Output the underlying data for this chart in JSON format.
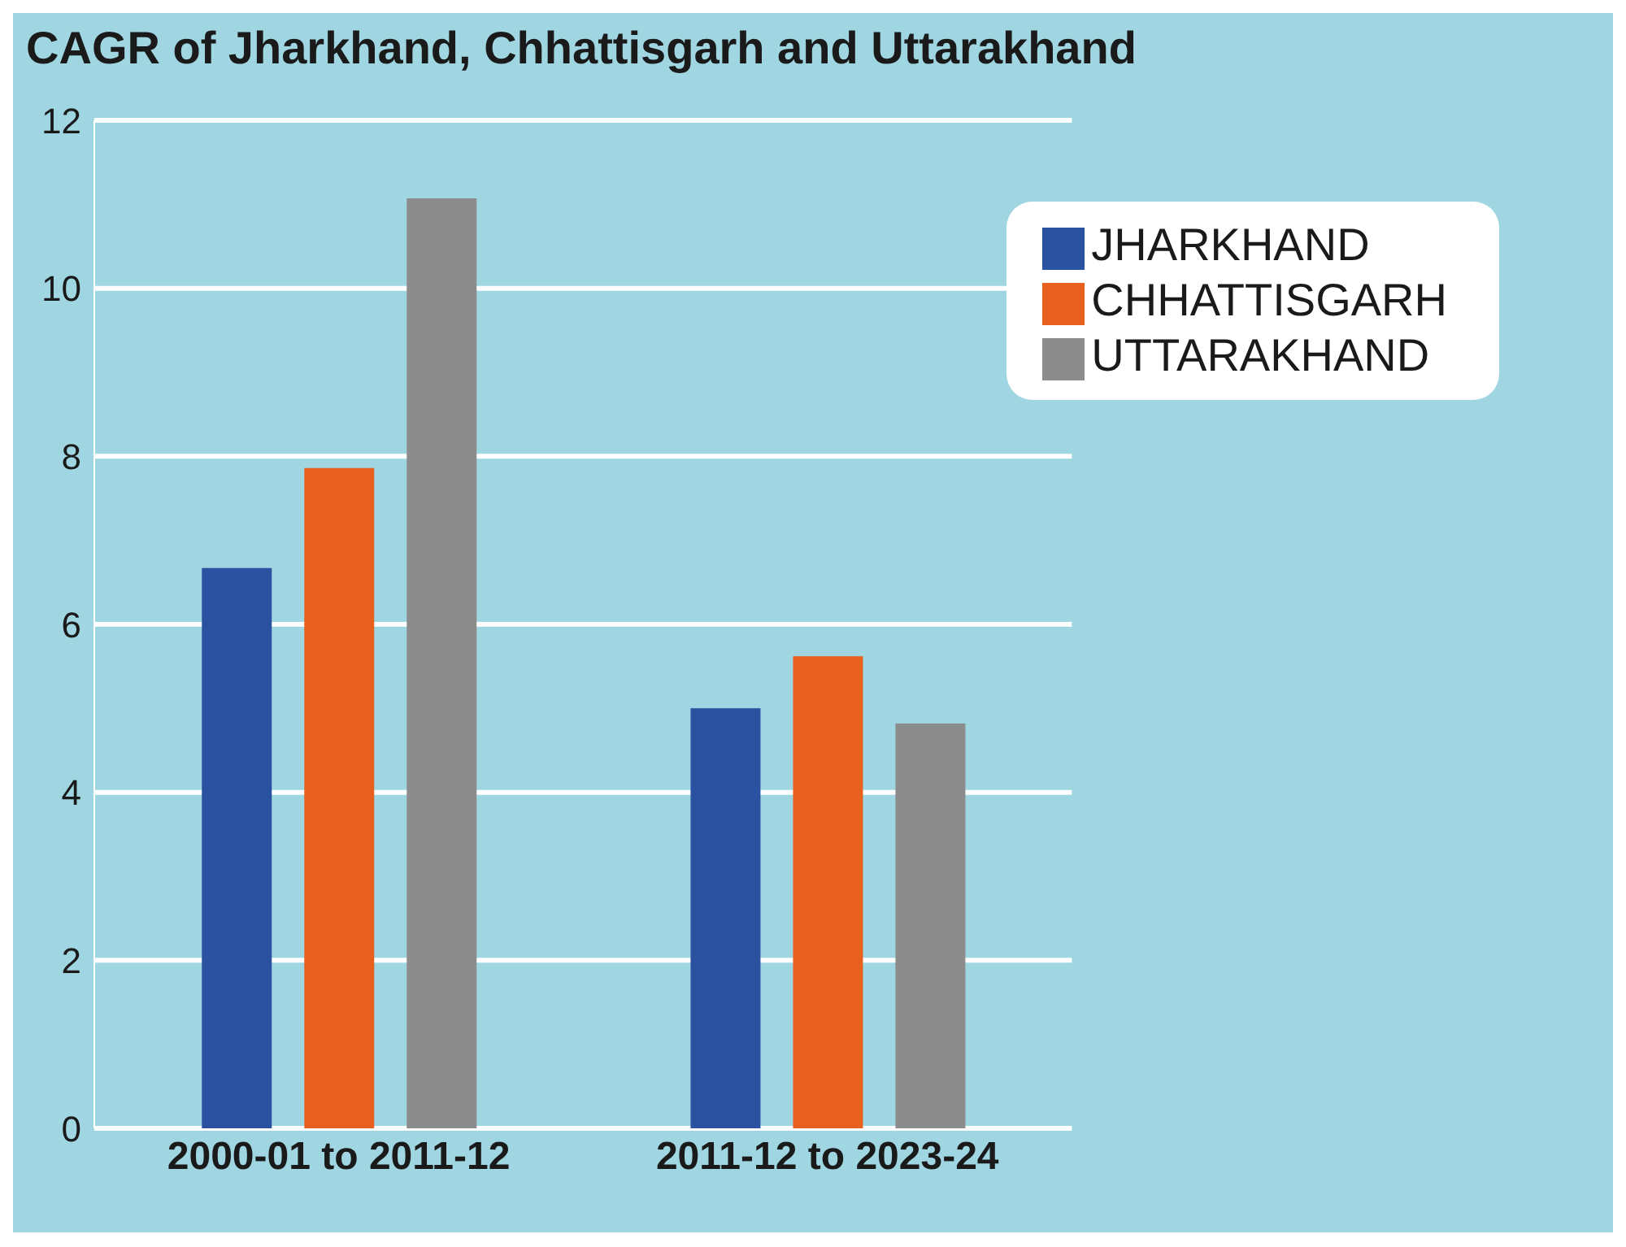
{
  "chart_data": {
    "type": "bar",
    "title": "CAGR of Jharkhand, Chhattisgarh and Uttarakhand",
    "categories": [
      "2000-01 to 2011-12",
      "2011-12 to 2023-24"
    ],
    "series": [
      {
        "name": "JHARKHAND",
        "color": "#2b52a0",
        "values": [
          6.67,
          5.0
        ]
      },
      {
        "name": "CHHATTISGARH",
        "color": "#e8601e",
        "values": [
          7.86,
          5.62
        ]
      },
      {
        "name": "UTTARAKHAND",
        "color": "#8c8c8c",
        "values": [
          11.07,
          4.82
        ]
      }
    ],
    "ylim": [
      0,
      12
    ],
    "yticks": [
      0,
      2,
      4,
      6,
      8,
      10,
      12
    ],
    "grid": "y",
    "legend": "top right"
  }
}
